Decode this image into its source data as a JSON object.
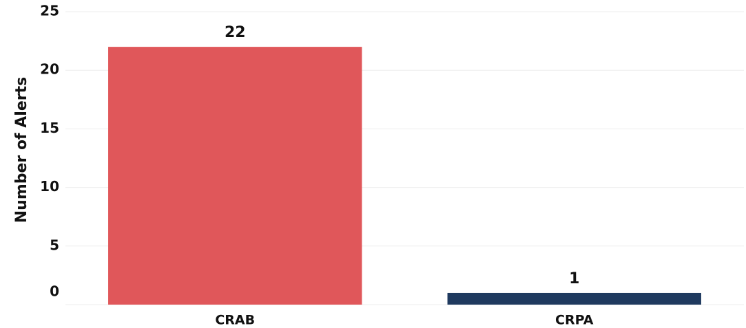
{
  "chart_data": {
    "type": "bar",
    "y_label": "Number of Alerts",
    "categories": [
      "CRAB",
      "CRPA"
    ],
    "values": [
      22,
      1
    ],
    "colors": [
      "#e0575a",
      "#1f3a5f"
    ],
    "ylim": [
      0,
      25
    ],
    "yticks": [
      0,
      5,
      10,
      15,
      20,
      25
    ],
    "grid": true
  }
}
